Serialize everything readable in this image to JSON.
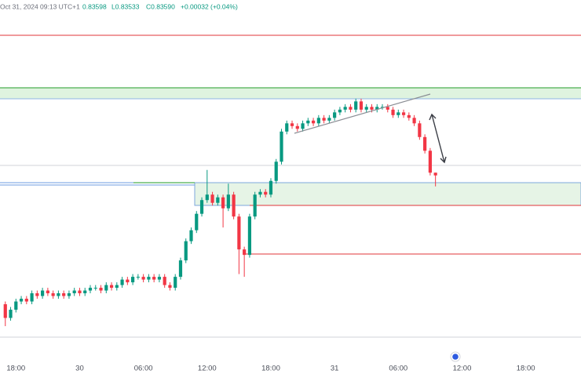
{
  "chart_data": {
    "type": "candlestick",
    "header": [
      "Oct 31, 2024 09:13 UTC+1",
      "0.83598",
      "L0.83533",
      "C0.83590",
      "+0.00032 (+0.04%)"
    ],
    "up_color": "#089981",
    "down_color": "#f23645",
    "xlim": [
      -1.5,
      53.2
    ],
    "ylim": [
      0.83,
      0.8423
    ],
    "xticks": [
      {
        "value": 0,
        "label": "18:00"
      },
      {
        "value": 6,
        "label": "30"
      },
      {
        "value": 12,
        "label": "06:00"
      },
      {
        "value": 18,
        "label": "12:00"
      },
      {
        "value": 24,
        "label": "18:00"
      },
      {
        "value": 30,
        "label": "31"
      },
      {
        "value": 36,
        "label": "06:00"
      },
      {
        "value": 42,
        "label": "12:00"
      },
      {
        "value": 48,
        "label": "18:00"
      }
    ],
    "x": [
      -1,
      -0.5,
      0,
      0.5,
      1,
      1.5,
      2,
      2.5,
      3,
      3.5,
      4,
      4.5,
      5,
      5.5,
      6,
      6.5,
      7,
      7.5,
      8,
      8.5,
      9,
      9.5,
      10,
      10.5,
      11,
      11.5,
      12,
      12.5,
      13,
      13.5,
      14,
      14.5,
      15,
      15.5,
      16,
      16.5,
      17,
      17.5,
      18,
      18.5,
      19,
      19.5,
      20,
      20.5,
      21,
      21.5,
      22,
      22.5,
      23,
      23.5,
      24,
      24.5,
      25,
      25.5,
      26,
      26.5,
      27,
      27.5,
      28,
      28.5,
      29,
      29.5,
      30,
      30.5,
      31,
      31.5,
      32,
      32.5,
      33,
      33.5,
      34,
      34.5,
      35,
      35.5,
      36,
      36.5,
      37,
      37.5,
      38,
      38.5,
      39,
      39.5
    ],
    "open": [
      0.8312,
      0.8307,
      0.831,
      0.8313,
      0.8314,
      0.8313,
      0.8316,
      0.8315,
      0.8317,
      0.8316,
      0.8315,
      0.8316,
      0.8315,
      0.8316,
      0.8317,
      0.8316,
      0.8317,
      0.8318,
      0.8318,
      0.8317,
      0.8319,
      0.8318,
      0.8319,
      0.8321,
      0.832,
      0.8322,
      0.8322,
      0.8321,
      0.8322,
      0.8321,
      0.8322,
      0.8319,
      0.8318,
      0.8322,
      0.8328,
      0.8335,
      0.8339,
      0.8345,
      0.835,
      0.8352,
      0.8349,
      0.8351,
      0.8347,
      0.8352,
      0.8344,
      0.8332,
      0.833,
      0.8344,
      0.8352,
      0.8353,
      0.8352,
      0.8357,
      0.8364,
      0.8375,
      0.8378,
      0.8377,
      0.8376,
      0.8378,
      0.8379,
      0.8378,
      0.838,
      0.8379,
      0.838,
      0.8382,
      0.8383,
      0.8384,
      0.8383,
      0.8386,
      0.8383,
      0.8384,
      0.8383,
      0.8384,
      0.8384,
      0.8383,
      0.8381,
      0.8382,
      0.8381,
      0.838,
      0.8378,
      0.8373,
      0.8368,
      0.836
    ],
    "high": [
      0.8313,
      0.8311,
      0.8314,
      0.8315,
      0.8315,
      0.8317,
      0.8317,
      0.8318,
      0.8318,
      0.8317,
      0.8317,
      0.8317,
      0.8317,
      0.8318,
      0.8318,
      0.8318,
      0.8319,
      0.8319,
      0.8319,
      0.832,
      0.832,
      0.832,
      0.8322,
      0.8322,
      0.8323,
      0.8323,
      0.8323,
      0.8323,
      0.8323,
      0.8323,
      0.8323,
      0.832,
      0.8323,
      0.8329,
      0.8336,
      0.834,
      0.8346,
      0.8351,
      0.8361,
      0.8353,
      0.8352,
      0.8352,
      0.8356,
      0.8353,
      0.8345,
      0.8333,
      0.8345,
      0.8353,
      0.8354,
      0.8354,
      0.8358,
      0.8365,
      0.8376,
      0.8379,
      0.8379,
      0.8378,
      0.8379,
      0.838,
      0.838,
      0.8381,
      0.8381,
      0.8381,
      0.8383,
      0.8384,
      0.8385,
      0.8385,
      0.8387,
      0.8387,
      0.8385,
      0.8385,
      0.8385,
      0.8385,
      0.8385,
      0.8384,
      0.8383,
      0.8383,
      0.8382,
      0.8381,
      0.8379,
      0.8374,
      0.8369,
      0.836
    ],
    "low": [
      0.8304,
      0.8306,
      0.8309,
      0.8312,
      0.8312,
      0.8312,
      0.8314,
      0.8314,
      0.8315,
      0.8314,
      0.8314,
      0.8314,
      0.8314,
      0.8315,
      0.8315,
      0.8315,
      0.8316,
      0.8317,
      0.8316,
      0.8316,
      0.8317,
      0.8317,
      0.8318,
      0.8319,
      0.8319,
      0.8321,
      0.832,
      0.832,
      0.832,
      0.832,
      0.8318,
      0.8317,
      0.8317,
      0.8321,
      0.8327,
      0.8334,
      0.8338,
      0.8344,
      0.8349,
      0.8348,
      0.8348,
      0.834,
      0.8346,
      0.8343,
      0.8323,
      0.8322,
      0.8329,
      0.8343,
      0.8351,
      0.8351,
      0.8351,
      0.8356,
      0.8363,
      0.8374,
      0.8376,
      0.8375,
      0.8375,
      0.8377,
      0.8377,
      0.8377,
      0.8378,
      0.8378,
      0.8379,
      0.8381,
      0.8382,
      0.8382,
      0.8382,
      0.8382,
      0.8382,
      0.8382,
      0.8382,
      0.8383,
      0.8382,
      0.838,
      0.838,
      0.838,
      0.8379,
      0.8377,
      0.8372,
      0.8367,
      0.8359,
      0.8355
    ],
    "close": [
      0.8307,
      0.831,
      0.8313,
      0.8314,
      0.8313,
      0.8316,
      0.8315,
      0.8317,
      0.8316,
      0.8315,
      0.8316,
      0.8315,
      0.8316,
      0.8317,
      0.8316,
      0.8317,
      0.8318,
      0.8318,
      0.8317,
      0.8319,
      0.8318,
      0.8319,
      0.8321,
      0.832,
      0.8322,
      0.8322,
      0.8321,
      0.8322,
      0.8321,
      0.8322,
      0.8319,
      0.8318,
      0.8322,
      0.8328,
      0.8335,
      0.8339,
      0.8345,
      0.835,
      0.8352,
      0.8349,
      0.8351,
      0.8347,
      0.8352,
      0.8344,
      0.8332,
      0.833,
      0.8344,
      0.8352,
      0.8353,
      0.8352,
      0.8357,
      0.8364,
      0.8375,
      0.8378,
      0.8377,
      0.8376,
      0.8378,
      0.8379,
      0.8378,
      0.838,
      0.8379,
      0.838,
      0.8382,
      0.8383,
      0.8384,
      0.8383,
      0.8386,
      0.8383,
      0.8384,
      0.8383,
      0.8384,
      0.8384,
      0.8383,
      0.8381,
      0.8382,
      0.8381,
      0.838,
      0.8378,
      0.8373,
      0.8368,
      0.836,
      0.8359
    ]
  }
}
